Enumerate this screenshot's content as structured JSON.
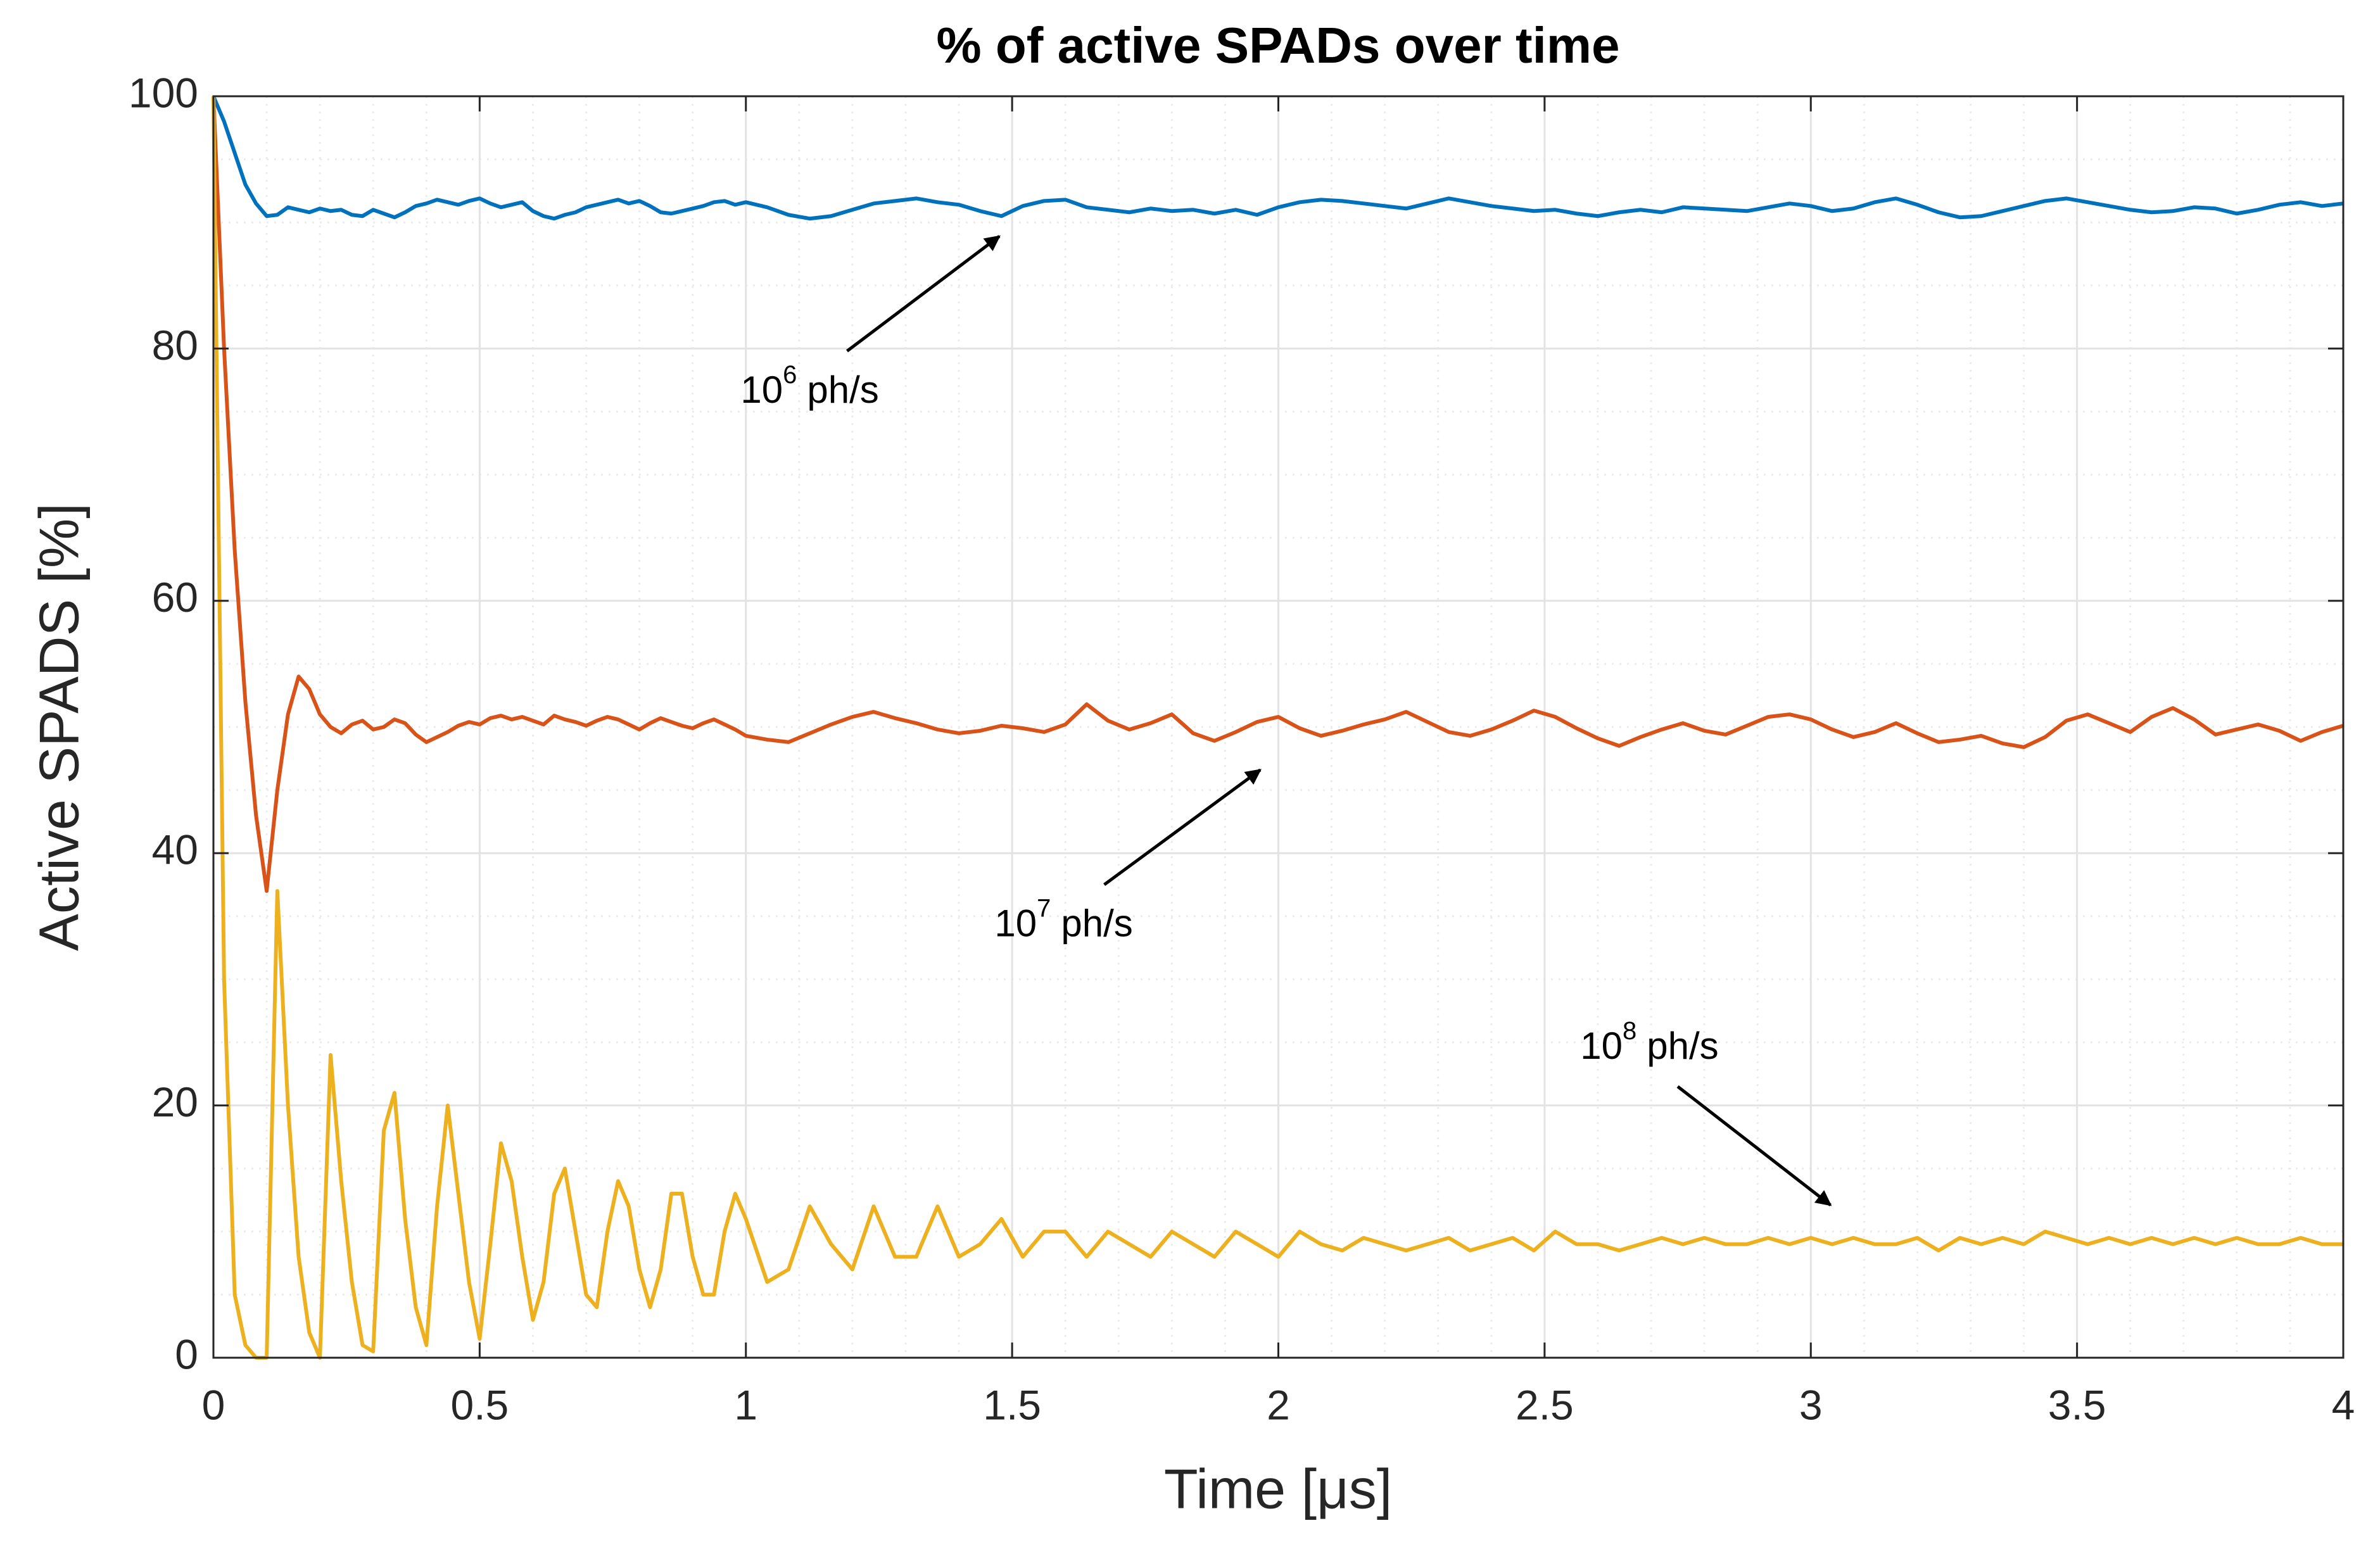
{
  "chart_data": {
    "type": "line",
    "title": "% of active SPADs over time",
    "x_label": "Time [μs]",
    "y_label": "Active SPADS [%]",
    "xlim": [
      0,
      4
    ],
    "ylim": [
      0,
      100
    ],
    "xticks": [
      0,
      0.5,
      1,
      1.5,
      2,
      2.5,
      3,
      3.5,
      4
    ],
    "yticks": [
      0,
      20,
      40,
      60,
      80,
      100
    ],
    "grid": true,
    "minor_grid": true,
    "x": [
      0,
      0.02,
      0.04,
      0.06,
      0.08,
      0.1,
      0.12,
      0.14,
      0.16,
      0.18,
      0.2,
      0.22,
      0.24,
      0.26,
      0.28,
      0.3,
      0.32,
      0.34,
      0.36,
      0.38,
      0.4,
      0.42,
      0.44,
      0.46,
      0.48,
      0.5,
      0.52,
      0.54,
      0.56,
      0.58,
      0.6,
      0.62,
      0.64,
      0.66,
      0.68,
      0.7,
      0.72,
      0.74,
      0.76,
      0.78,
      0.8,
      0.82,
      0.84,
      0.86,
      0.88,
      0.9,
      0.92,
      0.94,
      0.96,
      0.98,
      1,
      1.04,
      1.08,
      1.12,
      1.16,
      1.2,
      1.24,
      1.28,
      1.32,
      1.36,
      1.4,
      1.44,
      1.48,
      1.52,
      1.56,
      1.6,
      1.64,
      1.68,
      1.72,
      1.76,
      1.8,
      1.84,
      1.88,
      1.92,
      1.96,
      2,
      2.04,
      2.08,
      2.12,
      2.16,
      2.2,
      2.24,
      2.28,
      2.32,
      2.36,
      2.4,
      2.44,
      2.48,
      2.52,
      2.56,
      2.6,
      2.64,
      2.68,
      2.72,
      2.76,
      2.8,
      2.84,
      2.88,
      2.92,
      2.96,
      3,
      3.04,
      3.08,
      3.12,
      3.16,
      3.2,
      3.24,
      3.28,
      3.32,
      3.36,
      3.4,
      3.44,
      3.48,
      3.52,
      3.56,
      3.6,
      3.64,
      3.68,
      3.72,
      3.76,
      3.8,
      3.84,
      3.88,
      3.92,
      3.96,
      4
    ],
    "series": [
      {
        "color": "#0072BD",
        "values": [
          100,
          98,
          95.5,
          93,
          91.5,
          90.5,
          90.6,
          91.2,
          91,
          90.8,
          91.1,
          90.9,
          91,
          90.6,
          90.5,
          91,
          90.7,
          90.4,
          90.8,
          91.3,
          91.5,
          91.8,
          91.6,
          91.4,
          91.7,
          91.9,
          91.5,
          91.2,
          91.4,
          91.6,
          90.9,
          90.5,
          90.3,
          90.6,
          90.8,
          91.2,
          91.4,
          91.6,
          91.8,
          91.5,
          91.7,
          91.3,
          90.8,
          90.7,
          90.9,
          91.1,
          91.3,
          91.6,
          91.7,
          91.4,
          91.6,
          91.2,
          90.6,
          90.3,
          90.5,
          91,
          91.5,
          91.7,
          91.9,
          91.6,
          91.4,
          90.9,
          90.5,
          91.3,
          91.7,
          91.8,
          91.2,
          91,
          90.8,
          91.1,
          90.9,
          91,
          90.7,
          91,
          90.6,
          91.2,
          91.6,
          91.8,
          91.7,
          91.5,
          91.3,
          91.1,
          91.5,
          91.9,
          91.6,
          91.3,
          91.1,
          90.9,
          91,
          90.7,
          90.5,
          90.8,
          91,
          90.8,
          91.2,
          91.1,
          91,
          90.9,
          91.2,
          91.5,
          91.3,
          90.9,
          91.1,
          91.6,
          91.9,
          91.4,
          90.8,
          90.4,
          90.5,
          90.9,
          91.3,
          91.7,
          91.9,
          91.6,
          91.3,
          91,
          90.8,
          90.9,
          91.2,
          91.1,
          90.7,
          91,
          91.4,
          91.6,
          91.3,
          91.5
        ]
      },
      {
        "color": "#D95319",
        "values": [
          100,
          80,
          64,
          52,
          43,
          37,
          45,
          51,
          54,
          53,
          51,
          50,
          49.5,
          50.2,
          50.5,
          49.8,
          50,
          50.6,
          50.3,
          49.4,
          48.8,
          49.2,
          49.6,
          50.1,
          50.4,
          50.2,
          50.7,
          50.9,
          50.6,
          50.8,
          50.5,
          50.2,
          50.9,
          50.6,
          50.4,
          50.1,
          50.5,
          50.8,
          50.6,
          50.2,
          49.8,
          50.3,
          50.7,
          50.4,
          50.1,
          49.9,
          50.3,
          50.6,
          50.2,
          49.8,
          49.3,
          49,
          48.8,
          49.5,
          50.2,
          50.8,
          51.2,
          50.7,
          50.3,
          49.8,
          49.5,
          49.7,
          50.1,
          49.9,
          49.6,
          50.2,
          51.8,
          50.5,
          49.8,
          50.3,
          51,
          49.5,
          48.9,
          49.6,
          50.4,
          50.8,
          49.9,
          49.3,
          49.7,
          50.2,
          50.6,
          51.2,
          50.4,
          49.6,
          49.3,
          49.8,
          50.5,
          51.3,
          50.8,
          49.9,
          49.1,
          48.5,
          49.2,
          49.8,
          50.3,
          49.7,
          49.4,
          50.1,
          50.8,
          51,
          50.6,
          49.8,
          49.2,
          49.6,
          50.3,
          49.5,
          48.8,
          49,
          49.3,
          48.7,
          48.4,
          49.2,
          50.5,
          51,
          50.3,
          49.6,
          50.8,
          51.5,
          50.6,
          49.4,
          49.8,
          50.2,
          49.7,
          48.9,
          49.6,
          50.1
        ]
      },
      {
        "color": "#EDB120",
        "values": [
          100,
          30,
          5,
          1,
          0,
          0,
          37,
          20,
          8,
          2,
          0,
          24,
          14,
          6,
          1,
          0.5,
          18,
          21,
          11,
          4,
          1,
          12,
          20,
          13,
          6,
          1.5,
          9,
          17,
          14,
          8,
          3,
          6,
          13,
          15,
          10,
          5,
          4,
          10,
          14,
          12,
          7,
          4,
          7,
          13,
          13,
          8,
          5,
          5,
          10,
          13,
          11,
          6,
          7,
          12,
          9,
          7,
          12,
          8,
          8,
          12,
          8,
          9,
          11,
          8,
          10,
          10,
          8,
          10,
          9,
          8,
          10,
          9,
          8,
          10,
          9,
          8,
          10,
          9,
          8.5,
          9.5,
          9,
          8.5,
          9,
          9.5,
          8.5,
          9,
          9.5,
          8.5,
          10,
          9,
          9,
          8.5,
          9,
          9.5,
          9,
          9.5,
          9,
          9,
          9.5,
          9,
          9.5,
          9,
          9.5,
          9,
          9,
          9.5,
          8.5,
          9.5,
          9,
          9.5,
          9,
          10,
          9.5,
          9,
          9.5,
          9,
          9.5,
          9,
          9.5,
          9,
          9.5,
          9,
          9,
          9.5,
          9,
          9
        ]
      }
    ],
    "annotations": [
      {
        "base": "10",
        "exponent": "6",
        "unit": "ph/s",
        "xytext": [
          0.99,
          76.5
        ],
        "xytail": [
          1.19,
          79.8
        ],
        "xy": [
          1.476,
          88.9
        ]
      },
      {
        "base": "10",
        "exponent": "7",
        "unit": "ph/s",
        "xytext": [
          1.467,
          34.2
        ],
        "xytail": [
          1.673,
          37.5
        ],
        "xy": [
          1.966,
          46.6
        ]
      },
      {
        "base": "10",
        "exponent": "8",
        "unit": "ph/s",
        "xytext": [
          2.567,
          24.5
        ],
        "xytail": [
          2.75,
          21.5
        ],
        "xy": [
          3.037,
          12.1
        ]
      }
    ]
  }
}
